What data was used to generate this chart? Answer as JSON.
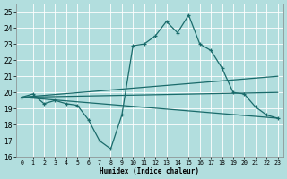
{
  "xlabel": "Humidex (Indice chaleur)",
  "background_color": "#b2dede",
  "grid_color": "#c8e8e8",
  "line_color": "#1a6b6b",
  "xlim": [
    -0.5,
    23.5
  ],
  "ylim": [
    16,
    25.5
  ],
  "yticks": [
    16,
    17,
    18,
    19,
    20,
    21,
    22,
    23,
    24,
    25
  ],
  "xticks": [
    0,
    1,
    2,
    3,
    4,
    5,
    6,
    7,
    8,
    9,
    10,
    11,
    12,
    13,
    14,
    15,
    16,
    17,
    18,
    19,
    20,
    21,
    22,
    23
  ],
  "series_main": {
    "x": [
      0,
      1,
      2,
      3,
      4,
      5,
      6,
      7,
      8,
      9,
      10,
      11,
      12,
      13,
      14,
      15,
      16,
      17,
      18,
      19,
      20,
      21,
      22,
      23
    ],
    "y": [
      19.7,
      19.9,
      19.3,
      19.5,
      19.3,
      19.2,
      18.3,
      17.0,
      16.5,
      18.6,
      22.9,
      23.0,
      23.5,
      24.4,
      23.7,
      24.8,
      23.0,
      22.6,
      21.5,
      20.0,
      19.9,
      19.1,
      18.6,
      18.4
    ]
  },
  "line1": {
    "x": [
      0,
      23
    ],
    "y": [
      19.7,
      21.0
    ]
  },
  "line2": {
    "x": [
      0,
      23
    ],
    "y": [
      19.7,
      20.0
    ]
  },
  "line3": {
    "x": [
      0,
      23
    ],
    "y": [
      19.7,
      18.4
    ]
  }
}
